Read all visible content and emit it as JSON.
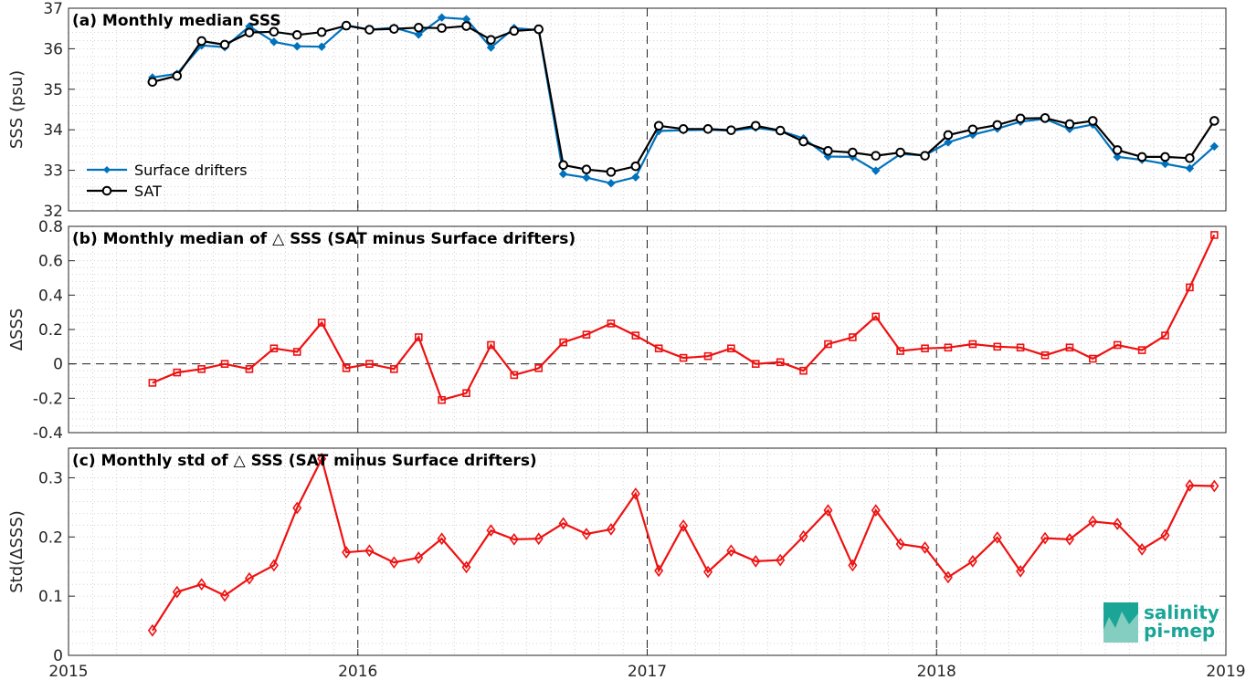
{
  "chart_data": [
    {
      "type": "line",
      "title": "(a) Monthly median SSS",
      "ylabel": "SSS (psu)",
      "xlabel": "",
      "xlim": [
        2015,
        2019
      ],
      "ylim": [
        32,
        37
      ],
      "yticks": [
        "32",
        "33",
        "34",
        "35",
        "36",
        "37"
      ],
      "grid": true,
      "legend_position": "lower-left",
      "x": [
        2015.29,
        2015.375,
        2015.46,
        2015.54,
        2015.625,
        2015.71,
        2015.79,
        2015.875,
        2015.96,
        2016.04,
        2016.125,
        2016.21,
        2016.29,
        2016.375,
        2016.46,
        2016.54,
        2016.625,
        2016.71,
        2016.79,
        2016.875,
        2016.96,
        2017.04,
        2017.125,
        2017.21,
        2017.29,
        2017.375,
        2017.46,
        2017.54,
        2017.625,
        2017.71,
        2017.79,
        2017.875,
        2017.96,
        2018.04,
        2018.125,
        2018.21,
        2018.29,
        2018.375,
        2018.46,
        2018.54,
        2018.625,
        2018.71,
        2018.79,
        2018.875,
        2018.96
      ],
      "series": [
        {
          "name": "Surface drifters",
          "color": "#0072bd",
          "marker": "diamond",
          "values": [
            35.29,
            35.38,
            36.08,
            36.04,
            36.55,
            36.17,
            36.06,
            36.05,
            36.58,
            36.47,
            36.52,
            36.35,
            36.77,
            36.73,
            36.03,
            36.51,
            36.46,
            32.91,
            32.82,
            32.68,
            32.83,
            33.97,
            33.99,
            34.0,
            33.98,
            34.05,
            33.97,
            33.79,
            33.34,
            33.33,
            32.99,
            33.4,
            33.37,
            33.69,
            33.88,
            34.03,
            34.2,
            34.27,
            34.02,
            34.13,
            33.33,
            33.26,
            33.16,
            33.05,
            33.59
          ]
        },
        {
          "name": "SAT",
          "color": "#000000",
          "marker": "circle",
          "values": [
            35.18,
            35.33,
            36.19,
            36.1,
            36.4,
            36.42,
            36.34,
            36.41,
            36.57,
            36.47,
            36.49,
            36.52,
            36.51,
            36.56,
            36.22,
            36.44,
            36.48,
            33.13,
            33.02,
            32.96,
            33.1,
            34.1,
            34.02,
            34.02,
            33.99,
            34.1,
            33.98,
            33.71,
            33.48,
            33.44,
            33.36,
            33.44,
            33.36,
            33.87,
            34.01,
            34.12,
            34.28,
            34.29,
            34.14,
            34.22,
            33.5,
            33.33,
            33.33,
            33.3,
            34.22
          ]
        }
      ]
    },
    {
      "type": "line",
      "title": "(b) Monthly median of △ SSS (SAT minus Surface drifters)",
      "ylabel": "ΔSSS",
      "xlabel": "",
      "xlim": [
        2015,
        2019
      ],
      "ylim": [
        -0.4,
        0.8
      ],
      "yticks": [
        "-0.4",
        "-0.2",
        "0",
        "0.2",
        "0.4",
        "0.6",
        "0.8"
      ],
      "grid": true,
      "zero_line": "dashed",
      "x": [
        2015.29,
        2015.375,
        2015.46,
        2015.54,
        2015.625,
        2015.71,
        2015.79,
        2015.875,
        2015.96,
        2016.04,
        2016.125,
        2016.21,
        2016.29,
        2016.375,
        2016.46,
        2016.54,
        2016.625,
        2016.71,
        2016.79,
        2016.875,
        2016.96,
        2017.04,
        2017.125,
        2017.21,
        2017.29,
        2017.375,
        2017.46,
        2017.54,
        2017.625,
        2017.71,
        2017.79,
        2017.875,
        2017.96,
        2018.04,
        2018.125,
        2018.21,
        2018.29,
        2018.375,
        2018.46,
        2018.54,
        2018.625,
        2018.71,
        2018.79,
        2018.875,
        2018.96
      ],
      "series": [
        {
          "color": "#ee1111",
          "marker": "square",
          "values": [
            -0.11,
            -0.05,
            -0.03,
            0.0,
            -0.03,
            0.09,
            0.07,
            0.24,
            -0.025,
            0.0,
            -0.03,
            0.155,
            -0.21,
            -0.17,
            0.11,
            -0.065,
            -0.025,
            0.125,
            0.17,
            0.235,
            0.165,
            0.09,
            0.035,
            0.045,
            0.09,
            0.0,
            0.01,
            -0.04,
            0.115,
            0.155,
            0.275,
            0.075,
            0.09,
            0.095,
            0.115,
            0.1,
            0.095,
            0.05,
            0.095,
            0.03,
            0.11,
            0.08,
            0.165,
            0.445,
            0.75
          ]
        }
      ]
    },
    {
      "type": "line",
      "title": "(c) Monthly std of △ SSS (SAT minus Surface drifters)",
      "ylabel": "Std(ΔSSS)",
      "xlabel": "",
      "xlim": [
        2015,
        2019
      ],
      "ylim": [
        0,
        0.35
      ],
      "yticks": [
        "0",
        "0.1",
        "0.2",
        "0.3"
      ],
      "xticks": [
        "2015",
        "2016",
        "2017",
        "2018",
        "2019"
      ],
      "grid": true,
      "x": [
        2015.29,
        2015.375,
        2015.46,
        2015.54,
        2015.625,
        2015.71,
        2015.79,
        2015.875,
        2015.96,
        2016.04,
        2016.125,
        2016.21,
        2016.29,
        2016.375,
        2016.46,
        2016.54,
        2016.625,
        2016.71,
        2016.79,
        2016.875,
        2016.96,
        2017.04,
        2017.125,
        2017.21,
        2017.29,
        2017.375,
        2017.46,
        2017.54,
        2017.625,
        2017.71,
        2017.79,
        2017.875,
        2017.96,
        2018.04,
        2018.125,
        2018.21,
        2018.29,
        2018.375,
        2018.46,
        2018.54,
        2018.625,
        2018.71,
        2018.79,
        2018.875,
        2018.96
      ],
      "series": [
        {
          "color": "#ee1111",
          "marker": "diamond",
          "values": [
            0.042,
            0.107,
            0.12,
            0.101,
            0.13,
            0.152,
            0.249,
            0.332,
            0.174,
            0.177,
            0.157,
            0.165,
            0.197,
            0.149,
            0.211,
            0.196,
            0.197,
            0.223,
            0.205,
            0.213,
            0.273,
            0.143,
            0.219,
            0.141,
            0.177,
            0.159,
            0.161,
            0.201,
            0.245,
            0.152,
            0.245,
            0.188,
            0.182,
            0.132,
            0.159,
            0.199,
            0.142,
            0.198,
            0.196,
            0.226,
            0.222,
            0.179,
            0.203,
            0.287,
            0.286
          ]
        }
      ]
    }
  ],
  "logo": {
    "line1": "salinity",
    "line2": "pi-mep"
  }
}
